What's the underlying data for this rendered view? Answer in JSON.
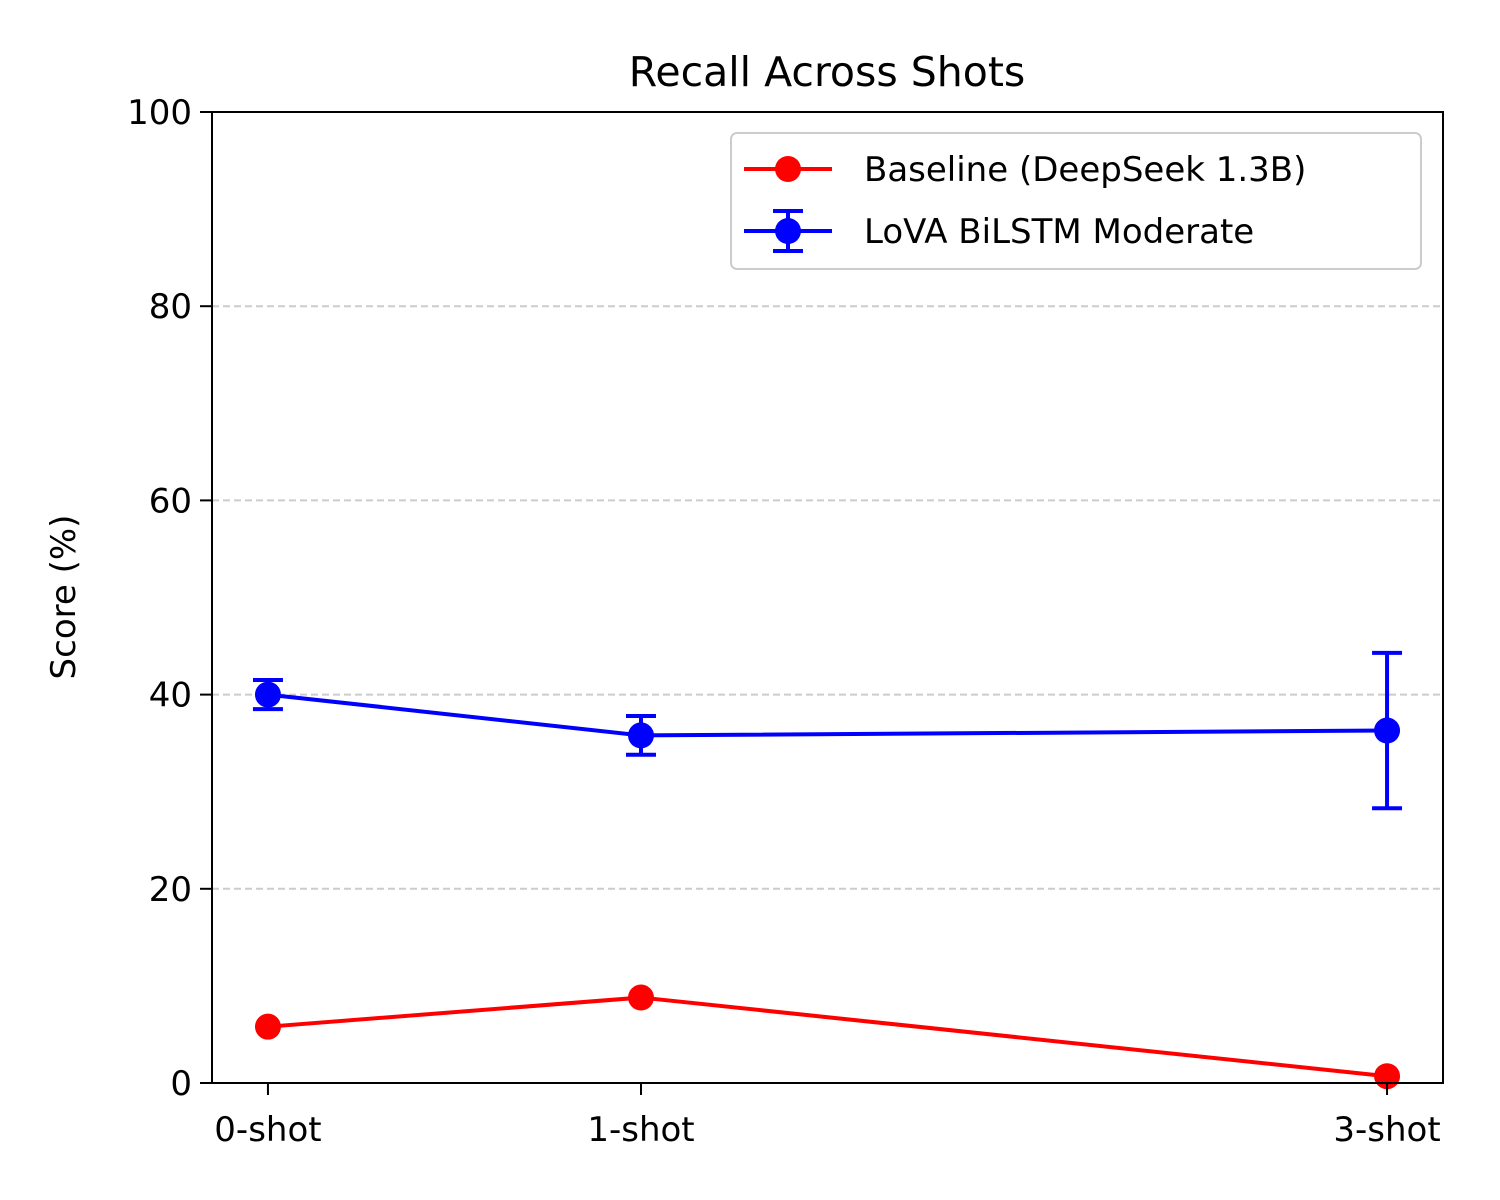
{
  "chart_data": {
    "type": "line",
    "title": "Recall Across Shots",
    "xlabel": "",
    "ylabel": "Score (%)",
    "x": [
      0,
      1,
      3
    ],
    "categories": [
      "0-shot",
      "1-shot",
      "3-shot"
    ],
    "xlim": [
      -0.15,
      3.15
    ],
    "ylim": [
      0,
      100
    ],
    "yticks": [
      0,
      20,
      40,
      60,
      80,
      100
    ],
    "grid": {
      "y": true,
      "style": "dashed",
      "color": "#cccccc"
    },
    "legend": "upper right",
    "series": [
      {
        "name": "Baseline (DeepSeek 1.3B)",
        "color": "#ff0000",
        "values": [
          5.8,
          8.8,
          0.7
        ]
      },
      {
        "name": "LoVA BiLSTM Moderate",
        "color": "#0000ff",
        "values": [
          40.0,
          35.8,
          36.3
        ],
        "errors": [
          1.5,
          2.0,
          8.0
        ]
      }
    ]
  }
}
